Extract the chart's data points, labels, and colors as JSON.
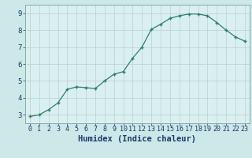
{
  "x": [
    0,
    1,
    2,
    3,
    4,
    5,
    6,
    7,
    8,
    9,
    10,
    11,
    12,
    13,
    14,
    15,
    16,
    17,
    18,
    19,
    20,
    21,
    22,
    23
  ],
  "y": [
    2.9,
    3.0,
    3.3,
    3.7,
    4.5,
    4.65,
    4.6,
    4.55,
    5.0,
    5.4,
    5.55,
    6.35,
    7.0,
    8.05,
    8.35,
    8.7,
    8.85,
    8.95,
    8.95,
    8.85,
    8.45,
    8.0,
    7.6,
    7.35
  ],
  "xlabel": "Humidex (Indice chaleur)",
  "xlim": [
    -0.5,
    23.5
  ],
  "ylim": [
    2.5,
    9.5
  ],
  "yticks": [
    3,
    4,
    5,
    6,
    7,
    8,
    9
  ],
  "xticks": [
    0,
    1,
    2,
    3,
    4,
    5,
    6,
    7,
    8,
    9,
    10,
    11,
    12,
    13,
    14,
    15,
    16,
    17,
    18,
    19,
    20,
    21,
    22,
    23
  ],
  "line_color": "#2e7d6e",
  "marker": "+",
  "bg_color": "#cce8e8",
  "axes_bg": "#daf0f0",
  "grid_color": "#b8d0d0",
  "xlabel_color": "#1a3a6a",
  "tick_color": "#1a3a6a",
  "xlabel_fontsize": 7.5,
  "tick_fontsize": 6.0,
  "ytick_fontsize": 6.5
}
